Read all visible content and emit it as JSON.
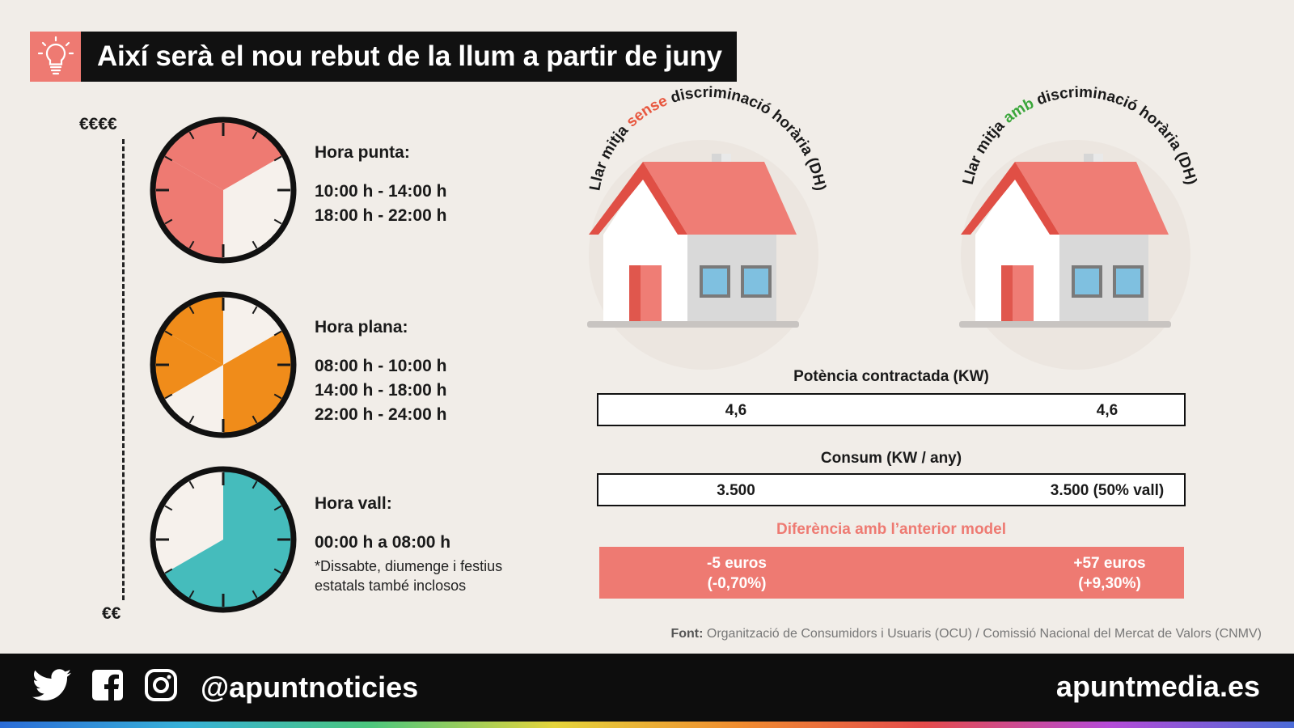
{
  "title": "Així serà el nou rebut de la llum a partir de juny",
  "scale": {
    "top": "€€€€",
    "bottom": "€€"
  },
  "tariffs": [
    {
      "label": "Hora punta:",
      "times": [
        "10:00 h - 14:00 h",
        "18:00 h - 22:00 h"
      ],
      "note": "",
      "color": "#ee7a72"
    },
    {
      "label": "Hora plana:",
      "times": [
        "08:00 h - 10:00 h",
        "14:00 h - 18:00 h",
        "22:00 h - 24:00 h"
      ],
      "note": "",
      "color": "#f08c1a"
    },
    {
      "label": "Hora vall:",
      "times": [
        "00:00 h a 08:00 h"
      ],
      "note_lines": [
        "*Dissabte, diumenge i festius",
        "estatals també inclosos"
      ],
      "color": "#45bcbc"
    }
  ],
  "houses": {
    "left": {
      "prefix": "Llar mitja ",
      "highlight": "sense",
      "suffix": " discriminació horària (DH)",
      "highlight_color": "#e8573f"
    },
    "right": {
      "prefix": "Llar mitja ",
      "highlight": "amb",
      "suffix": " discriminació horària (DH)",
      "highlight_color": "#3aa63a"
    }
  },
  "table": {
    "power_title": "Potència contractada (KW)",
    "power_left": "4,6",
    "power_right": "4,6",
    "consumption_title": "Consum (KW / any)",
    "consumption_left": "3.500",
    "consumption_right": "3.500 (50% vall)",
    "diff_title": "Diferència amb l’anterior model",
    "diff_left_1": "-5 euros",
    "diff_left_2": "(-0,70%)",
    "diff_right_1": "+57 euros",
    "diff_right_2": "(+9,30%)"
  },
  "source": {
    "label": "Font:",
    "text": " Organització de Consumidors i Usuaris (OCU) / Comissió Nacional del Mercat de Valors (CNMV)"
  },
  "footer": {
    "handle": "@apuntnoticies",
    "site": "apuntmedia.es"
  },
  "icons": [
    "lightbulb-icon",
    "twitter-icon",
    "facebook-icon",
    "instagram-icon"
  ]
}
